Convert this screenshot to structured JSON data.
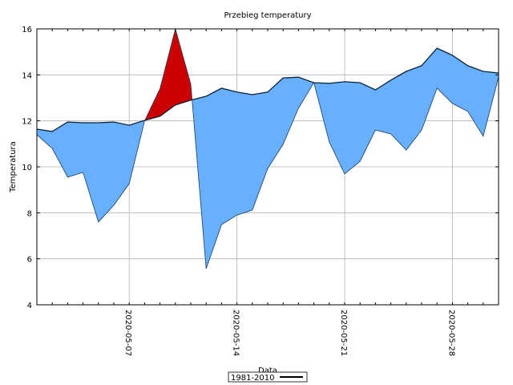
{
  "chart_data": {
    "type": "area",
    "title": "Przebieg temperatury",
    "xlabel": "Data",
    "ylabel": "Temperatura",
    "ylim": [
      4,
      16
    ],
    "yticks": [
      4,
      6,
      8,
      10,
      12,
      14,
      16
    ],
    "xlim": [
      "2020-05-01",
      "2020-05-31"
    ],
    "xtick_labels": [
      "2020-05-07",
      "2020-05-14",
      "2020-05-21",
      "2020-05-28"
    ],
    "grid": true,
    "legend_placement": "bottom-center",
    "dates": [
      "2020-05-01",
      "2020-05-02",
      "2020-05-03",
      "2020-05-04",
      "2020-05-05",
      "2020-05-06",
      "2020-05-07",
      "2020-05-08",
      "2020-05-09",
      "2020-05-10",
      "2020-05-11",
      "2020-05-12",
      "2020-05-13",
      "2020-05-14",
      "2020-05-15",
      "2020-05-16",
      "2020-05-17",
      "2020-05-18",
      "2020-05-19",
      "2020-05-20",
      "2020-05-21",
      "2020-05-22",
      "2020-05-23",
      "2020-05-24",
      "2020-05-25",
      "2020-05-26",
      "2020-05-27",
      "2020-05-28",
      "2020-05-29",
      "2020-05-30",
      "2020-05-31"
    ],
    "series": [
      {
        "name": "1981-2010",
        "color": "#000000",
        "values": [
          11.64,
          11.54,
          11.95,
          11.92,
          11.92,
          11.95,
          11.81,
          12.02,
          12.2,
          12.69,
          12.9,
          13.07,
          13.42,
          13.25,
          13.14,
          13.25,
          13.87,
          13.9,
          13.66,
          13.63,
          13.7,
          13.66,
          13.35,
          13.77,
          14.15,
          14.4,
          15.16,
          14.85,
          14.4,
          14.15,
          14.08
        ]
      },
      {
        "values": [
          11.4,
          10.8,
          9.55,
          9.76,
          7.6,
          8.33,
          9.27,
          12.0,
          13.4,
          16.0,
          13.6,
          5.57,
          7.49,
          7.9,
          8.12,
          9.93,
          10.98,
          12.55,
          13.66,
          11.08,
          9.69,
          10.24,
          11.6,
          11.43,
          10.73,
          11.6,
          13.42,
          12.76,
          12.41,
          11.33,
          13.9
        ]
      }
    ],
    "fill_colors": {
      "below_normal": "#66b0ff",
      "above_normal": "#cc0000"
    }
  }
}
